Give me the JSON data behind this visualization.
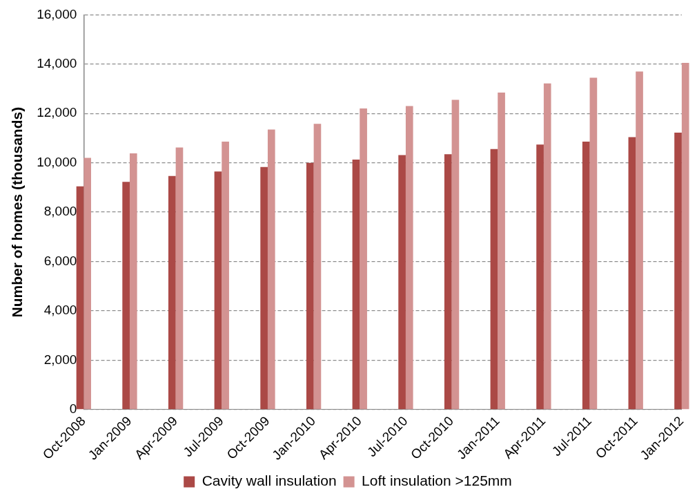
{
  "chart_data": {
    "type": "bar",
    "ylabel": "Number of homes (thousands)",
    "categories": [
      "Oct-2008",
      "Jan-2009",
      "Apr-2009",
      "Jul-2009",
      "Oct-2009",
      "Jan-2010",
      "Apr-2010",
      "Jul-2010",
      "Oct-2010",
      "Jan-2011",
      "Apr-2011",
      "Jul-2011",
      "Oct-2011",
      "Jan-2012"
    ],
    "series": [
      {
        "name": "Cavity wall insulation",
        "color": "#ab4946",
        "values": [
          9050,
          9230,
          9470,
          9650,
          9830,
          10000,
          10130,
          10310,
          10350,
          10560,
          10740,
          10860,
          11040,
          11220
        ]
      },
      {
        "name": "Loft insulation >125mm",
        "color": "#d39392",
        "values": [
          10200,
          10380,
          10620,
          10860,
          11350,
          11580,
          12200,
          12300,
          12550,
          12850,
          13220,
          13450,
          13700,
          14050
        ]
      }
    ],
    "ylim": [
      0,
      16000
    ],
    "yticks": [
      0,
      {
        "value": 2000,
        "label": "2,000"
      },
      {
        "value": 4000,
        "label": "4,000"
      },
      {
        "value": 6000,
        "label": "6,000"
      },
      {
        "value": 8000,
        "label": "8,000"
      },
      {
        "value": 10000,
        "label": "10,000"
      },
      {
        "value": 12000,
        "label": "12,000"
      },
      {
        "value": 14000,
        "label": "14,000"
      },
      {
        "value": 16000,
        "label": "16,000"
      }
    ],
    "grid": "y",
    "legend": "bottom"
  }
}
